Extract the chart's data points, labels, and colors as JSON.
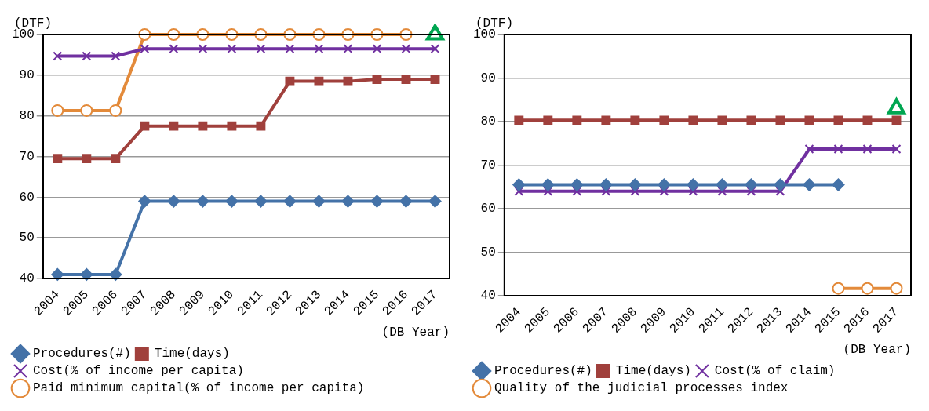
{
  "chart_data": [
    {
      "type": "line",
      "ylabel": "(DTF)",
      "xlabel": "(DB Year)",
      "categories": [
        "2004",
        "2005",
        "2006",
        "2007",
        "2008",
        "2009",
        "2010",
        "2011",
        "2012",
        "2013",
        "2014",
        "2015",
        "2016",
        "2017"
      ],
      "ylim": [
        40,
        100
      ],
      "yticks": [
        40,
        50,
        60,
        70,
        80,
        90,
        100
      ],
      "grid": "y",
      "legend": "bottom",
      "series": [
        {
          "name": "Procedures(#)",
          "color": "#4472a8",
          "marker": "diamond",
          "values": [
            41,
            41,
            41,
            59,
            59,
            59,
            59,
            59,
            59,
            59,
            59,
            59,
            59,
            59
          ]
        },
        {
          "name": "Time(days)",
          "color": "#a0403c",
          "marker": "square",
          "values": [
            69.5,
            69.5,
            69.5,
            77.5,
            77.5,
            77.5,
            77.5,
            77.5,
            88.5,
            88.5,
            88.5,
            89,
            89,
            89
          ]
        },
        {
          "name": "Cost(% of income per capita)",
          "color": "#7030a0",
          "marker": "cross",
          "values": [
            94.7,
            94.7,
            94.7,
            96.5,
            96.5,
            96.5,
            96.5,
            96.5,
            96.5,
            96.5,
            96.5,
            96.5,
            96.5,
            96.5
          ]
        },
        {
          "name": "Paid minimum capital(% of income per capita)",
          "color": "#e38a3a",
          "marker": "circle",
          "values": [
            81.3,
            81.3,
            81.3,
            100,
            100,
            100,
            100,
            100,
            100,
            100,
            100,
            100,
            100,
            null
          ]
        },
        {
          "type": "scatter",
          "color": "#00a651",
          "marker": "triangle",
          "values": [
            null,
            null,
            null,
            null,
            null,
            null,
            null,
            null,
            null,
            null,
            null,
            null,
            null,
            100
          ]
        }
      ]
    },
    {
      "type": "line",
      "ylabel": "(DTF)",
      "xlabel": "(DB Year)",
      "categories": [
        "2004",
        "2005",
        "2006",
        "2007",
        "2008",
        "2009",
        "2010",
        "2011",
        "2012",
        "2013",
        "2014",
        "2015",
        "2016",
        "2017"
      ],
      "ylim": [
        40,
        100
      ],
      "yticks": [
        40,
        50,
        60,
        70,
        80,
        90,
        100
      ],
      "grid": "y",
      "legend": "bottom",
      "series": [
        {
          "name": "Procedures(#)",
          "color": "#4472a8",
          "marker": "diamond",
          "values": [
            65.5,
            65.5,
            65.5,
            65.5,
            65.5,
            65.5,
            65.5,
            65.5,
            65.5,
            65.5,
            65.5,
            65.5,
            null,
            null
          ]
        },
        {
          "name": "Time(days)",
          "color": "#a0403c",
          "marker": "square",
          "values": [
            80.3,
            80.3,
            80.3,
            80.3,
            80.3,
            80.3,
            80.3,
            80.3,
            80.3,
            80.3,
            80.3,
            80.3,
            80.3,
            80.3
          ]
        },
        {
          "name": "Cost(% of claim)",
          "color": "#7030a0",
          "marker": "cross",
          "values": [
            64,
            64,
            64,
            64,
            64,
            64,
            64,
            64,
            64,
            64,
            73.7,
            73.7,
            73.7,
            73.7
          ]
        },
        {
          "name": "Quality of the judicial processes index",
          "color": "#e38a3a",
          "marker": "circle",
          "values": [
            null,
            null,
            null,
            null,
            null,
            null,
            null,
            null,
            null,
            null,
            null,
            41.7,
            41.7,
            41.7
          ]
        },
        {
          "type": "scatter",
          "color": "#00a651",
          "marker": "triangle",
          "values": [
            null,
            null,
            null,
            null,
            null,
            null,
            null,
            null,
            null,
            null,
            null,
            null,
            null,
            83
          ]
        }
      ]
    }
  ]
}
